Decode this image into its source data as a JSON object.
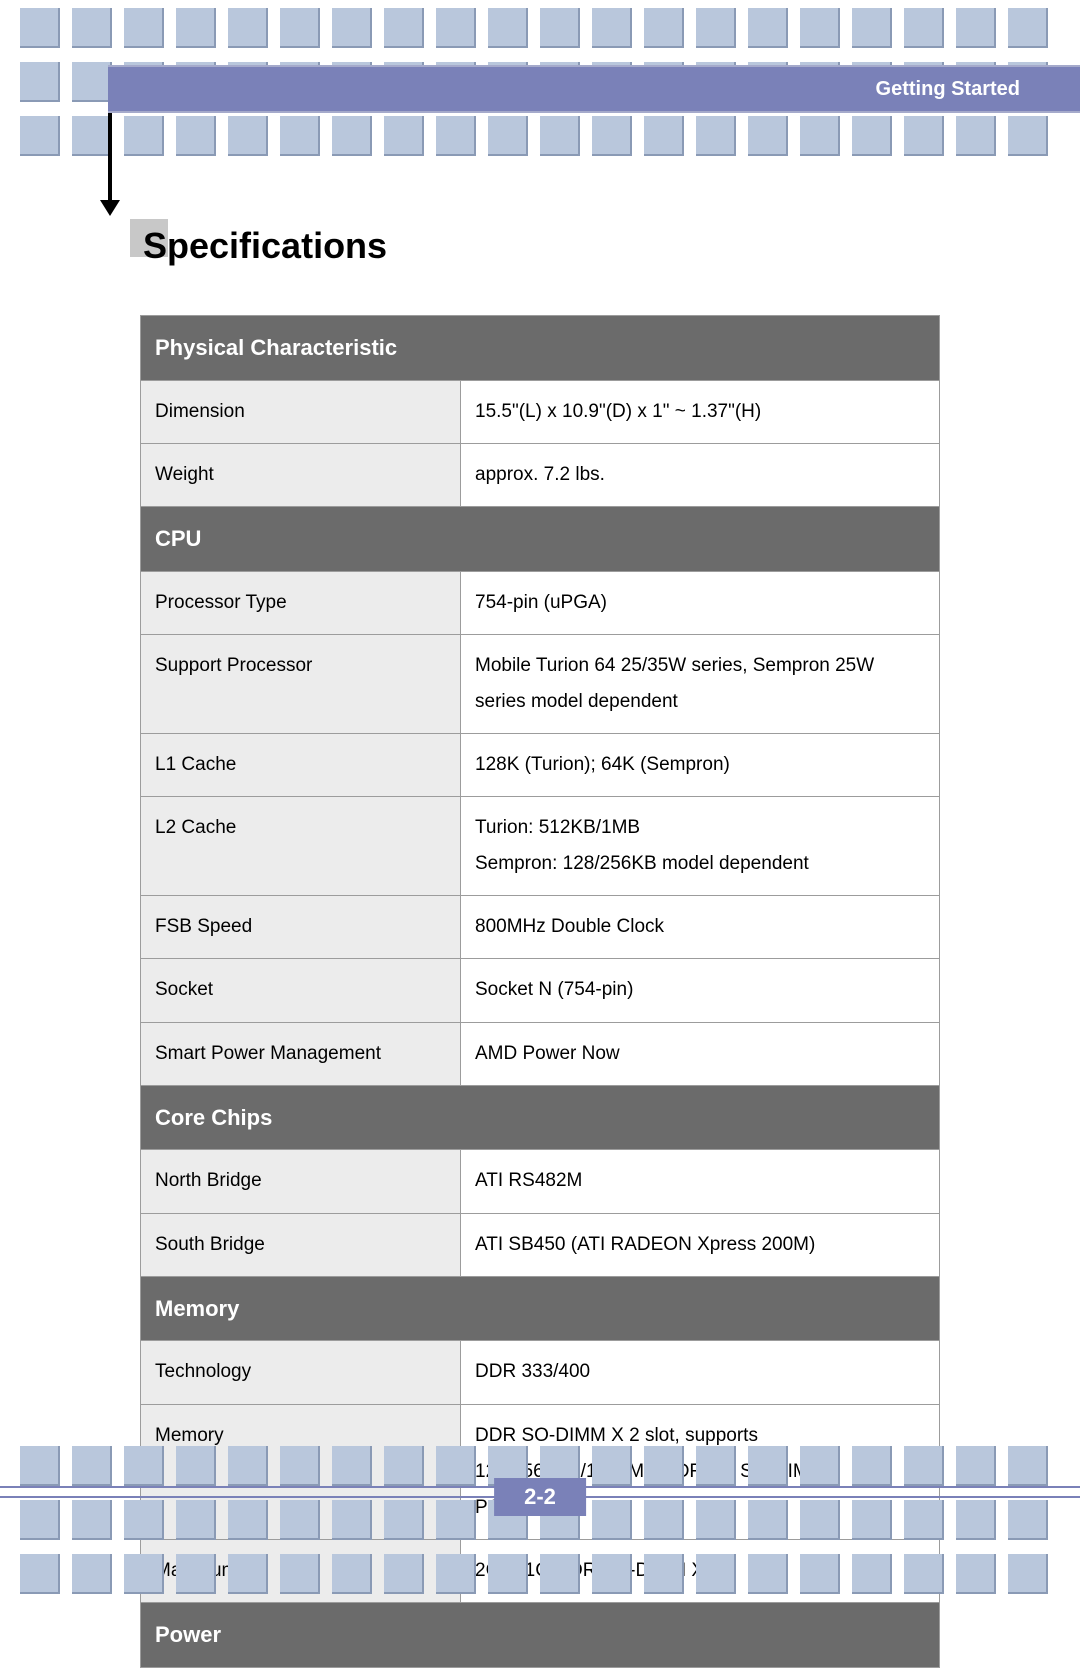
{
  "header": {
    "title": "Getting Started"
  },
  "page": {
    "heading": "Specifications",
    "number": "2-2"
  },
  "decor": {
    "square_color": "#b9c7dc",
    "square_shadow": "#8a9ab5",
    "header_bar_color": "#7a81b8",
    "section_bg": "#6b6b6b",
    "section_fg": "#ffffff",
    "label_bg": "#ececec",
    "value_bg": "#ffffff",
    "border_color": "#9c9c9c"
  },
  "sections": [
    {
      "title": "Physical Characteristic",
      "rows": [
        {
          "label": "Dimension",
          "value": "15.5\"(L) x 10.9\"(D) x 1\" ~ 1.37\"(H)"
        },
        {
          "label": "Weight",
          "value": "approx. 7.2 lbs."
        }
      ]
    },
    {
      "title": "CPU",
      "rows": [
        {
          "label": "Processor Type",
          "value": "754-pin (uPGA)"
        },
        {
          "label": "Support Processor",
          "value": "Mobile Turion 64 25/35W series, Sempron 25W series model dependent"
        },
        {
          "label": "L1 Cache",
          "value": "128K (Turion); 64K (Sempron)"
        },
        {
          "label": "L2 Cache",
          "value": "Turion: 512KB/1MB\nSempron: 128/256KB model dependent"
        },
        {
          "label": "FSB Speed",
          "value": "800MHz Double Clock"
        },
        {
          "label": "Socket",
          "value": "Socket N (754-pin)"
        },
        {
          "label": "Smart Power Management",
          "value": "AMD Power Now"
        }
      ]
    },
    {
      "title": "Core Chips",
      "rows": [
        {
          "label": "North Bridge",
          "value": "ATI RS482M"
        },
        {
          "label": "South Bridge",
          "value": "ATI SB450 (ATI RADEON Xpress 200M)"
        }
      ]
    },
    {
      "title": "Memory",
      "rows": [
        {
          "label": "Technology",
          "value": "DDR 333/400"
        },
        {
          "label": "Memory",
          "value": "DDR SO-DIMM X 2 slot, supports\n128/256/512/1024MB DDR333 SO-DIMM\nPC2700"
        },
        {
          "label": "Maximum",
          "value": "2GB (1G DDR SO-DIMM X 2)"
        }
      ]
    },
    {
      "title": "Power",
      "rows": []
    }
  ]
}
